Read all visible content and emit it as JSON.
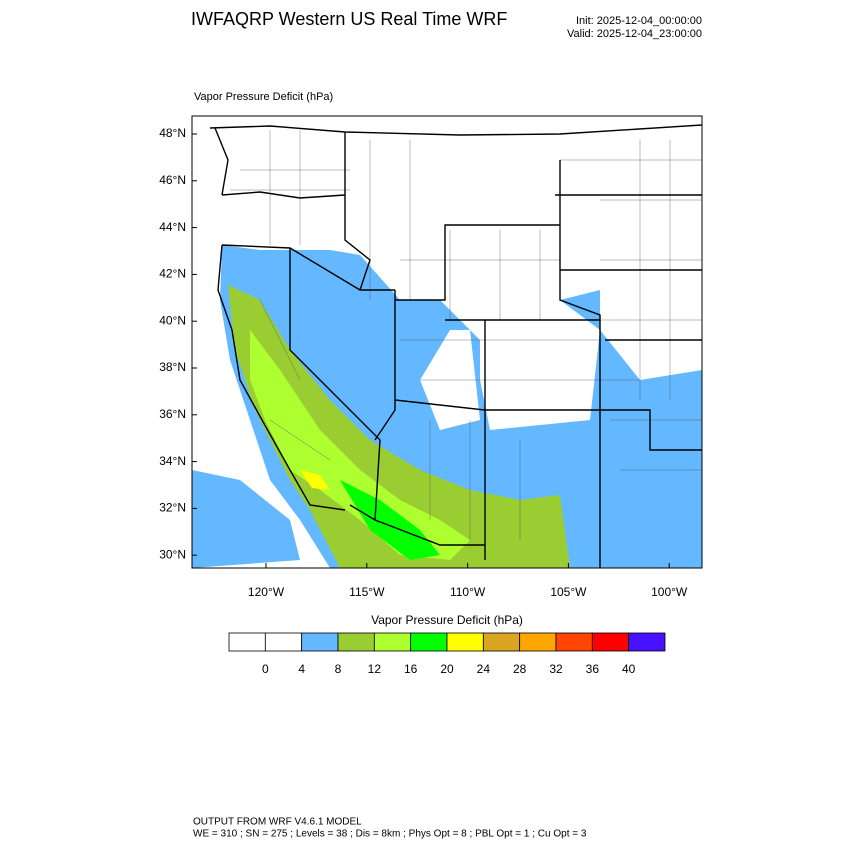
{
  "header": {
    "title": "IWFAQRP Western US Real Time WRF",
    "init": "Init: 2025-12-04_00:00:00",
    "valid": "Valid: 2025-12-04_23:00:00"
  },
  "map": {
    "field_label": "Vapor Pressure Deficit   (hPa)",
    "lat_labels": [
      "48°N",
      "46°N",
      "44°N",
      "42°N",
      "40°N",
      "38°N",
      "36°N",
      "34°N",
      "32°N",
      "30°N"
    ],
    "lon_labels": [
      "120°W",
      "115°W",
      "110°W",
      "105°W",
      "100°W"
    ]
  },
  "colorbar": {
    "title": "Vapor Pressure Deficit  (hPa)",
    "labels": [
      "0",
      "4",
      "8",
      "12",
      "16",
      "20",
      "24",
      "28",
      "32",
      "36",
      "40"
    ],
    "colors": [
      "#ffffff",
      "#ffffff",
      "#63b8ff",
      "#9acd32",
      "#adff2f",
      "#00ff00",
      "#ffff00",
      "#daa520",
      "#ffa500",
      "#ff4500",
      "#ff0000",
      "#4712ff"
    ]
  },
  "footer": {
    "line1": "OUTPUT FROM WRF V4.6.1 MODEL",
    "line2": "WE = 310 ; SN = 275 ; Levels = 38 ; Dis = 8km ; Phys Opt = 8 ; PBL Opt = 1 ; Cu Opt = 3"
  }
}
